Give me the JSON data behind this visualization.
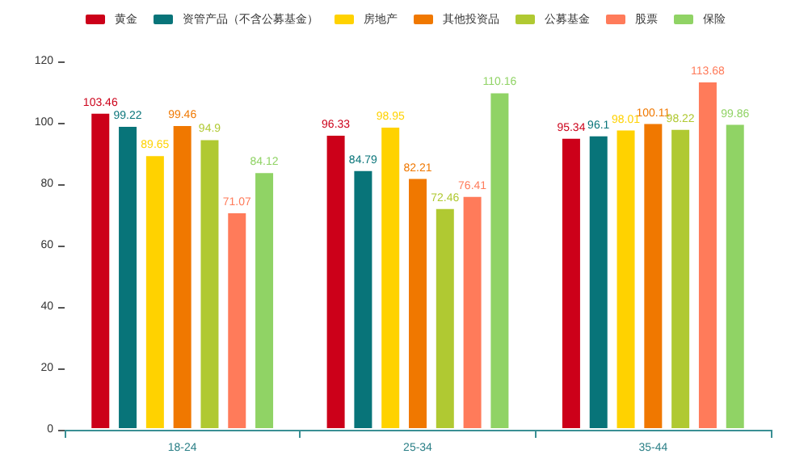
{
  "chart_data": {
    "type": "bar",
    "categories": [
      "18-24",
      "25-34",
      "35-44"
    ],
    "series": [
      {
        "name": "黄金",
        "color": "#cc0019",
        "values": [
          103.46,
          96.33,
          95.34
        ]
      },
      {
        "name": "资管产品（不含公募基金）",
        "color": "#087479",
        "values": [
          99.22,
          84.79,
          96.1
        ]
      },
      {
        "name": "房地产",
        "color": "#ffd200",
        "values": [
          89.65,
          98.95,
          98.01
        ]
      },
      {
        "name": "其他投资品",
        "color": "#f07800",
        "values": [
          99.46,
          82.21,
          100.11
        ]
      },
      {
        "name": "公募基金",
        "color": "#b0c932",
        "values": [
          94.9,
          72.46,
          98.22
        ]
      },
      {
        "name": "股票",
        "color": "#ff7b5a",
        "values": [
          71.07,
          76.41,
          113.68
        ]
      },
      {
        "name": "保险",
        "color": "#90d365",
        "values": [
          84.12,
          110.16,
          99.86
        ]
      }
    ],
    "ylim": [
      0,
      120
    ],
    "yticks": [
      0,
      20,
      40,
      60,
      80,
      100,
      120
    ],
    "grid": false,
    "legend": "top",
    "data_labels": true
  }
}
